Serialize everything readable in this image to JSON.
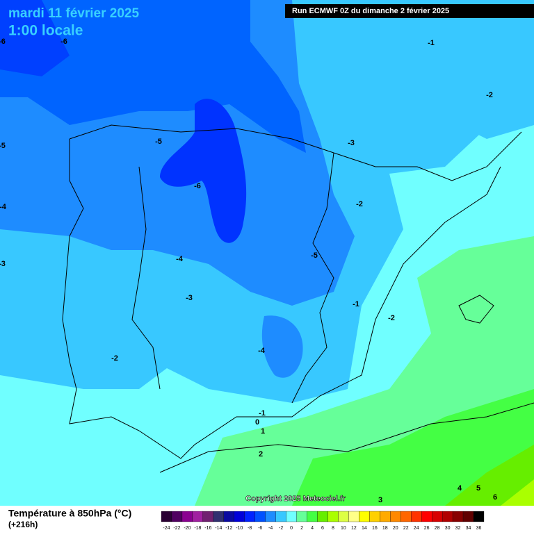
{
  "header": {
    "title": "mardi 11 février 2025",
    "subtitle": "1:00 locale",
    "run": "Run ECMWF 0Z du dimanche 2 février 2025"
  },
  "contour_labels": [
    "-6",
    "-6",
    "-1",
    "-2",
    "-5",
    "-5",
    "-3",
    "-6",
    "-4",
    "-2",
    "-3",
    "-4",
    "-5",
    "-3",
    "-1",
    "-2",
    "-4",
    "-2",
    "-1",
    "0",
    "1",
    "2",
    "4",
    "5",
    "6",
    "3"
  ],
  "copyright": "Copyright 2025 Meteociel.fr",
  "legend": {
    "title": "Température à 850hPa (°C)",
    "lead": "(+216h)",
    "scale": [
      -24,
      -22,
      -20,
      -18,
      -16,
      -14,
      -12,
      -10,
      -8,
      -6,
      -4,
      -2,
      0,
      2,
      4,
      6,
      8,
      10,
      12,
      14,
      16,
      18,
      20,
      22,
      24,
      26,
      28,
      30,
      32,
      34,
      36
    ],
    "colors": [
      "#2a0033",
      "#500060",
      "#8a0090",
      "#a020a0",
      "#702070",
      "#303070",
      "#0a0aa0",
      "#0000d8",
      "#0022ff",
      "#0050ff",
      "#1e8cff",
      "#38c8ff",
      "#70ffff",
      "#66ff99",
      "#44ff44",
      "#66ee00",
      "#aaff00",
      "#ddff44",
      "#ffff88",
      "#ffff00",
      "#ffd000",
      "#ffaa00",
      "#ff8800",
      "#ff6600",
      "#ff3300",
      "#ff0000",
      "#d80000",
      "#b00000",
      "#880000",
      "#600000",
      "#000000"
    ]
  }
}
